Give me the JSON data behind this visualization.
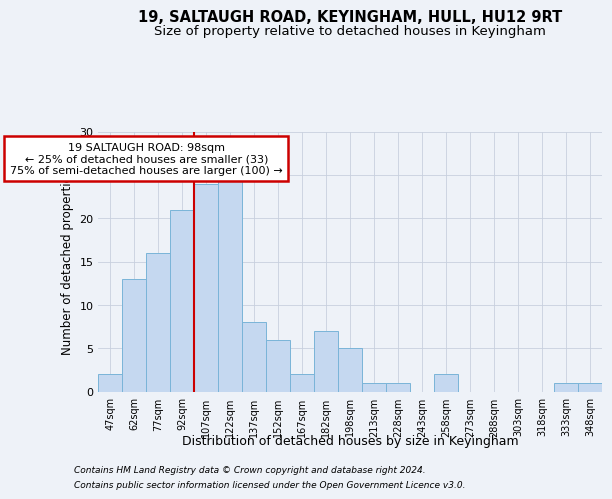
{
  "title": "19, SALTAUGH ROAD, KEYINGHAM, HULL, HU12 9RT",
  "subtitle": "Size of property relative to detached houses in Keyingham",
  "xlabel": "Distribution of detached houses by size in Keyingham",
  "ylabel": "Number of detached properties",
  "categories": [
    "47sqm",
    "62sqm",
    "77sqm",
    "92sqm",
    "107sqm",
    "122sqm",
    "137sqm",
    "152sqm",
    "167sqm",
    "182sqm",
    "198sqm",
    "213sqm",
    "228sqm",
    "243sqm",
    "258sqm",
    "273sqm",
    "288sqm",
    "303sqm",
    "318sqm",
    "333sqm",
    "348sqm"
  ],
  "values": [
    2,
    13,
    16,
    21,
    24,
    25,
    8,
    6,
    2,
    7,
    5,
    1,
    1,
    0,
    2,
    0,
    0,
    0,
    0,
    1,
    1
  ],
  "bar_color": "#c5d8f0",
  "bar_edge_color": "#7ab4d8",
  "red_line_x": 3.5,
  "annotation_title": "19 SALTAUGH ROAD: 98sqm",
  "annotation_line1": "← 25% of detached houses are smaller (33)",
  "annotation_line2": "75% of semi-detached houses are larger (100) →",
  "ylim": [
    0,
    30
  ],
  "yticks": [
    0,
    5,
    10,
    15,
    20,
    25,
    30
  ],
  "footer1": "Contains HM Land Registry data © Crown copyright and database right 2024.",
  "footer2": "Contains public sector information licensed under the Open Government Licence v3.0.",
  "bg_color": "#eef2f8",
  "grid_color": "#c8d0de",
  "title_fontsize": 10.5,
  "subtitle_fontsize": 9.5,
  "annotation_box_color": "#ffffff",
  "annotation_box_edge": "#cc0000",
  "red_line_color": "#cc0000"
}
